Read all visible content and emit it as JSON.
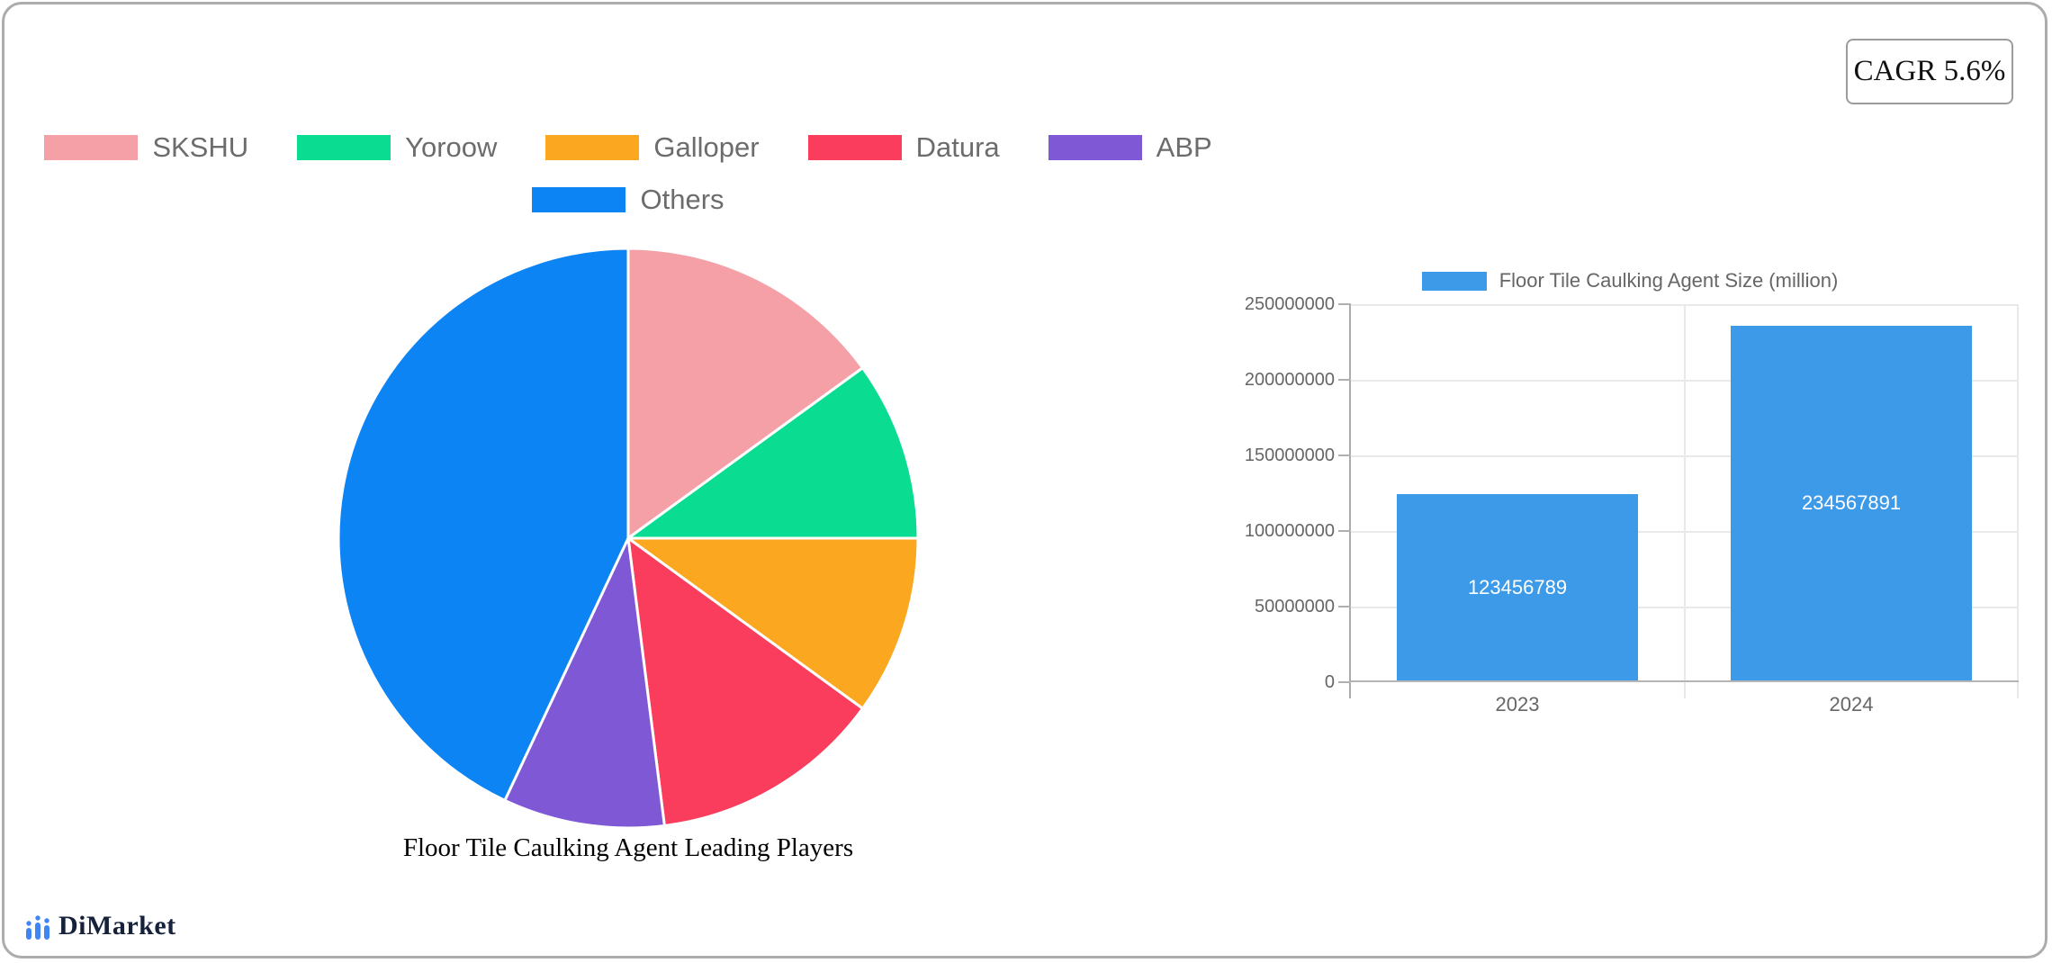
{
  "cagr_badge": {
    "label": "CAGR 5.6%"
  },
  "logo": {
    "text": "DiMarket",
    "icon": "bar-chart-trend-icon",
    "icon_color": "#3f86f4"
  },
  "colors": {
    "card_border": "#acacac",
    "legend_text": "#6c6c6c",
    "axis_text": "#666666",
    "gridline": "#e9e9e9",
    "axis_line": "#acacac"
  },
  "chart_data": [
    {
      "type": "pie",
      "title": "Floor Tile Caulking Agent Leading Players",
      "labels": [
        "SKSHU",
        "Yoroow",
        "Galloper",
        "Datura",
        "ABP",
        "Others"
      ],
      "values": [
        15,
        10,
        10,
        13,
        9,
        43
      ],
      "unit": "percent-share",
      "colors": [
        "#f5a0a6",
        "#0add92",
        "#fba71f",
        "#fa3c5d",
        "#7e58d5",
        "#0d84f4"
      ],
      "start_angle": "12-oclock",
      "direction": "clockwise",
      "legend_position": "top",
      "slice_border_color": "#ffffff"
    },
    {
      "type": "bar",
      "legend": "Floor Tile Caulking Agent Size (million)",
      "categories": [
        "2023",
        "2024"
      ],
      "values": [
        123456789,
        234567891
      ],
      "bar_color": "#3c9ae9",
      "value_label_color": "#ffffff",
      "ylim": [
        0,
        250000000
      ],
      "yticks": [
        0,
        50000000,
        100000000,
        150000000,
        200000000,
        250000000
      ],
      "grid": true,
      "legend_position": "top"
    }
  ]
}
